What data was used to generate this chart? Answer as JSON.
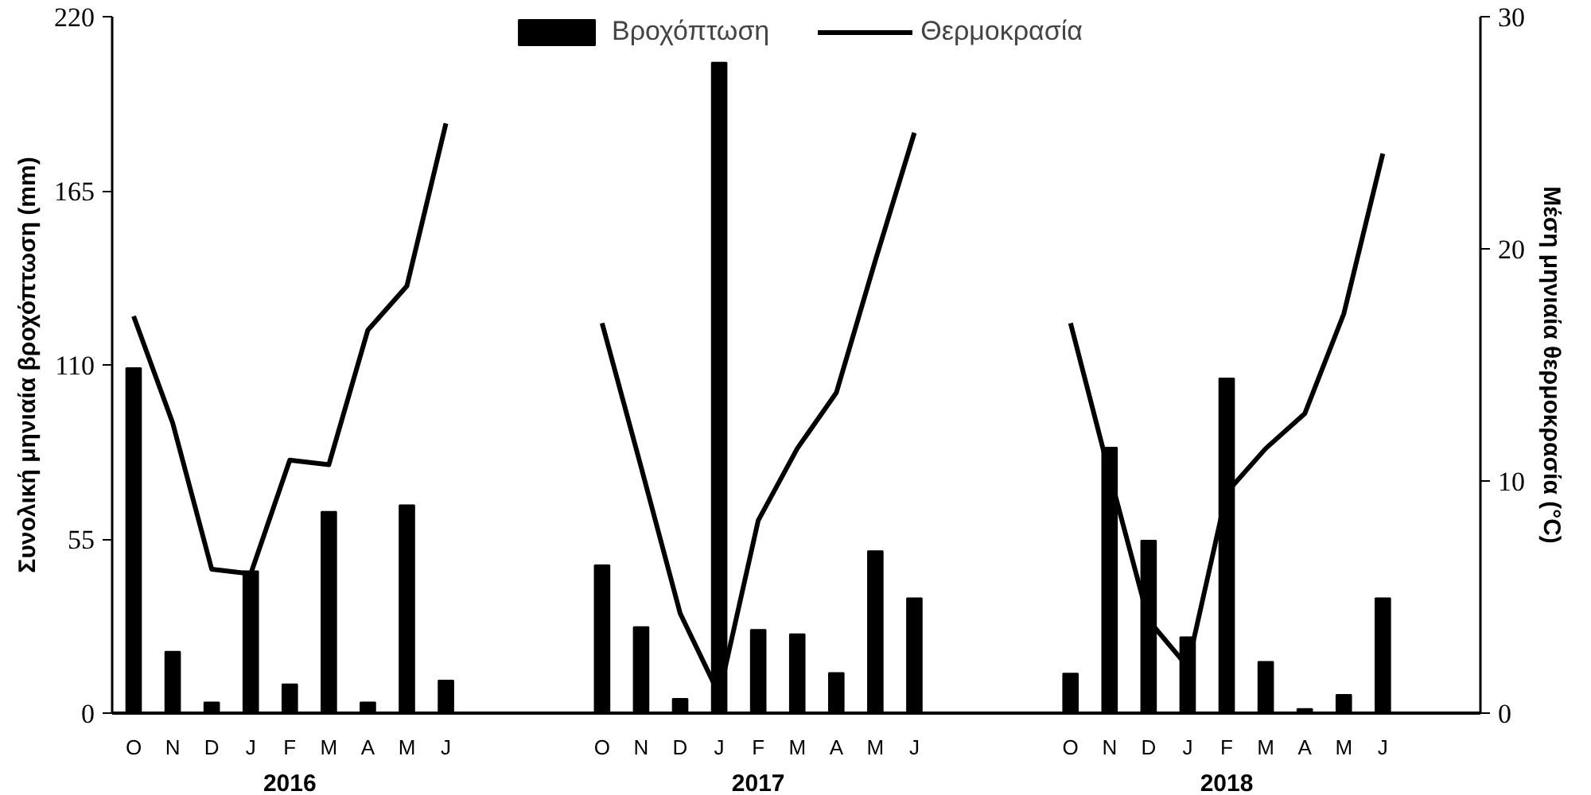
{
  "chart_data": {
    "type": "bar",
    "categories": [
      "O",
      "N",
      "D",
      "J",
      "F",
      "M",
      "A",
      "M",
      "J",
      null,
      null,
      null,
      "O",
      "N",
      "D",
      "J",
      "F",
      "M",
      "A",
      "M",
      "J",
      null,
      null,
      null,
      "O",
      "N",
      "D",
      "J",
      "F",
      "M",
      "A",
      "M",
      "J"
    ],
    "series": [
      {
        "name": "Βροχόπτωση",
        "color": "#000000",
        "values": [
          109,
          19.4,
          3.4,
          44.8,
          9.1,
          63.6,
          3.4,
          65.7,
          10.3,
          null,
          null,
          null,
          46.7,
          27.2,
          4.5,
          205.5,
          26.3,
          24.9,
          12.7,
          51.2,
          36.3,
          null,
          null,
          null,
          12.5,
          83.9,
          54.5,
          24.0,
          105.7,
          16.2,
          1.3,
          5.8,
          36.3
        ]
      },
      {
        "name": "Θερμοκρασία",
        "type": "line",
        "axis": "y2",
        "color": "#000000",
        "values": [
          17.1,
          12.5,
          6.2,
          6.0,
          10.9,
          10.7,
          16.5,
          18.4,
          25.4,
          null,
          null,
          null,
          16.8,
          10.6,
          4.3,
          0.8,
          8.3,
          11.4,
          13.8,
          19.5,
          25.0,
          null,
          null,
          null,
          16.8,
          10.3,
          4.0,
          2.0,
          9.5,
          11.4,
          12.9,
          17.2,
          24.1
        ]
      }
    ],
    "ylabel": "Συνολική μηνιαία βροχόπτωση (mm)",
    "y2label": "Μέση μηνιαία θερμοκρασία (°C)",
    "ylim": [
      0,
      220
    ],
    "yticks": [
      0,
      55,
      110,
      165,
      220
    ],
    "y2lim": [
      0,
      30
    ],
    "y2ticks": [
      0,
      10,
      20,
      30
    ],
    "annotations": [
      "2016",
      "2017",
      "2018"
    ],
    "legend": "top",
    "grid": false
  }
}
